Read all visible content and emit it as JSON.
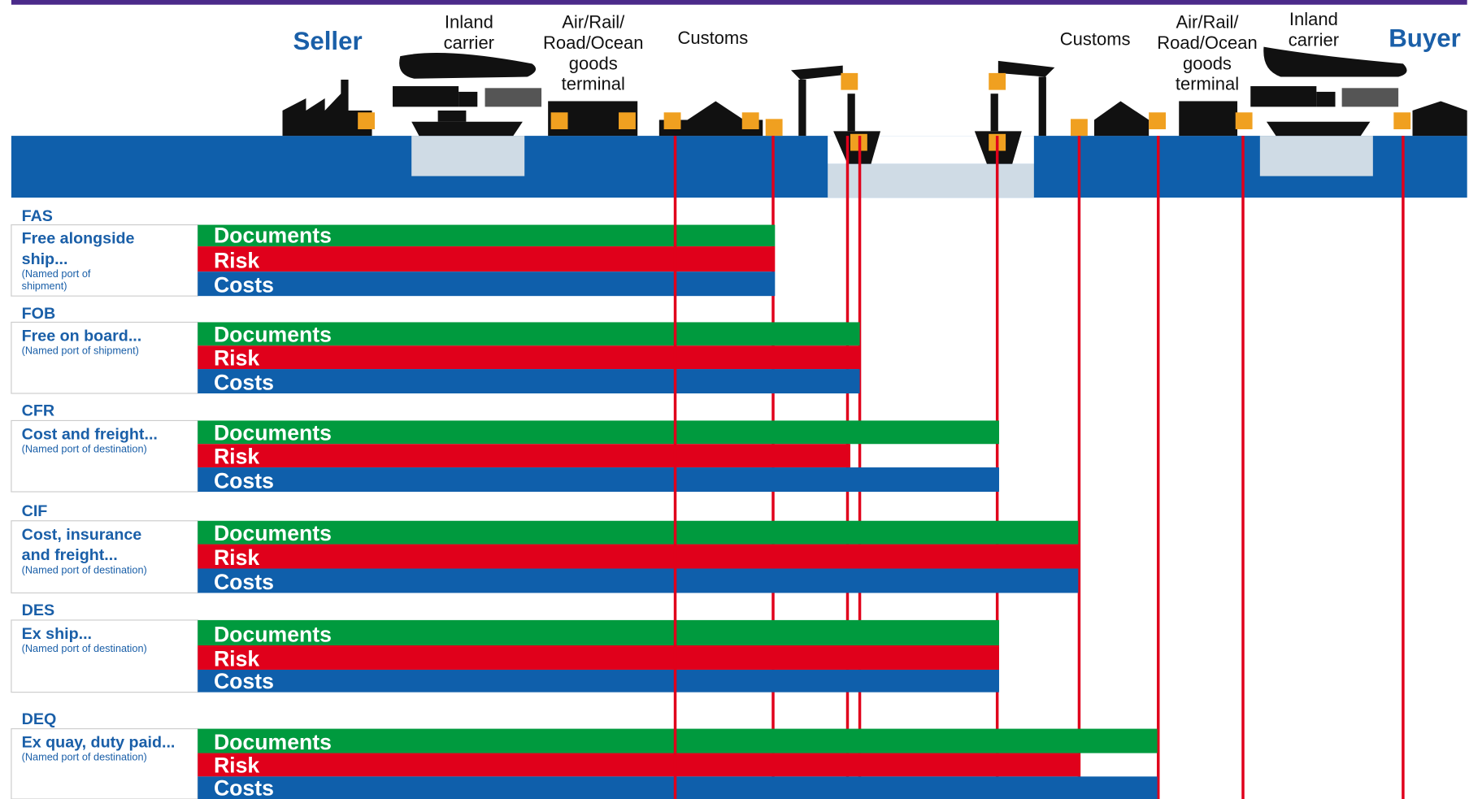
{
  "header": {
    "seller": "Seller",
    "buyer": "Buyer",
    "left_labels": [
      [
        "Inland",
        "carrier"
      ],
      [
        "Air/Rail/",
        "Road/Ocean",
        "goods",
        "terminal"
      ],
      [
        "Customs"
      ]
    ],
    "right_labels": [
      [
        "Customs"
      ],
      [
        "Air/Rail/",
        "Road/Ocean",
        "goods",
        "terminal"
      ],
      [
        "Inland",
        "carrier"
      ]
    ]
  },
  "rows": [
    {
      "code": "FAS",
      "name": [
        "Free alongside",
        "ship..."
      ],
      "note": [
        "(Named port of",
        "shipment)"
      ],
      "bars": [
        "Documents",
        "Risk",
        "Costs"
      ]
    },
    {
      "code": "FOB",
      "name": [
        "Free on board..."
      ],
      "note": [
        "(Named port of shipment)"
      ],
      "bars": [
        "Documents",
        "Risk",
        "Costs"
      ]
    },
    {
      "code": "CFR",
      "name": [
        "Cost and freight..."
      ],
      "note": [
        "(Named port of destination)"
      ],
      "bars": [
        "Documents",
        "Risk",
        "Costs"
      ]
    },
    {
      "code": "CIF",
      "name": [
        "Cost, insurance",
        "and freight..."
      ],
      "note": [
        "(Named port of destination)"
      ],
      "bars": [
        "Documents",
        "Risk",
        "Costs"
      ]
    },
    {
      "code": "DES",
      "name": [
        "Ex ship..."
      ],
      "note": [
        "(Named port of destination)"
      ],
      "bars": [
        "Documents",
        "Risk",
        "Costs"
      ]
    },
    {
      "code": "DEQ",
      "name": [
        "Ex quay, duty paid..."
      ],
      "note": [
        "(Named port of destination)"
      ],
      "bars": [
        "Documents",
        "Risk",
        "Costs"
      ]
    }
  ]
}
